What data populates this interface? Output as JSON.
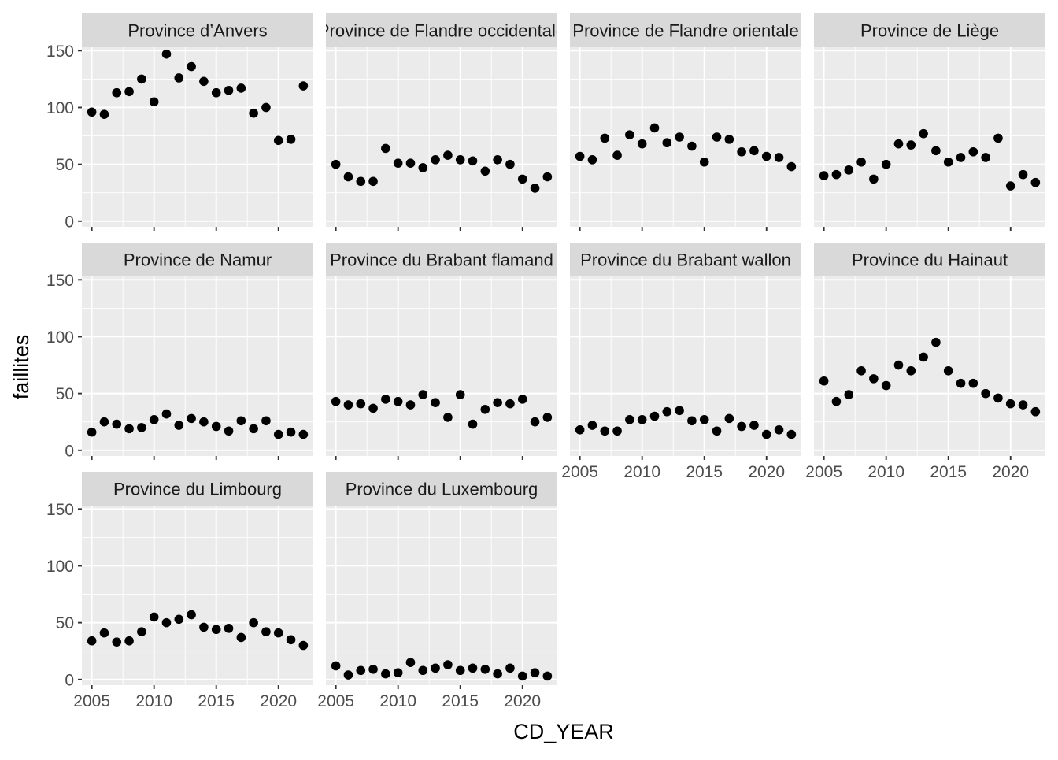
{
  "chart_data": {
    "type": "scatter",
    "xlabel": "CD_YEAR",
    "ylabel": "faillites",
    "xlim": [
      2004.2,
      2022.8
    ],
    "ylim": [
      -5,
      153
    ],
    "x_ticks": [
      "2005",
      "2010",
      "2015",
      "2020"
    ],
    "y_ticks": [
      "0",
      "50",
      "100",
      "150"
    ],
    "x": [
      2005,
      2006,
      2007,
      2008,
      2009,
      2010,
      2011,
      2012,
      2013,
      2014,
      2015,
      2016,
      2017,
      2018,
      2019,
      2020,
      2021,
      2022
    ],
    "grid": true,
    "point_color": "#000000",
    "panel_background": "#EBEBEB",
    "strip_background": "#D9D9D9",
    "facets": [
      {
        "name": "Province d’Anvers",
        "values": [
          96,
          94,
          113,
          114,
          125,
          105,
          147,
          126,
          136,
          123,
          113,
          115,
          117,
          95,
          100,
          71,
          72,
          119
        ]
      },
      {
        "name": "Province de Flandre occidentale",
        "values": [
          50,
          39,
          35,
          35,
          64,
          51,
          51,
          47,
          54,
          58,
          54,
          53,
          44,
          54,
          50,
          37,
          29,
          39
        ]
      },
      {
        "name": "Province de Flandre orientale",
        "values": [
          57,
          54,
          73,
          58,
          76,
          68,
          82,
          69,
          74,
          66,
          52,
          74,
          72,
          61,
          62,
          57,
          56,
          48
        ]
      },
      {
        "name": "Province de Liège",
        "values": [
          40,
          41,
          45,
          52,
          37,
          50,
          68,
          67,
          77,
          62,
          52,
          56,
          61,
          56,
          73,
          31,
          41,
          34
        ]
      },
      {
        "name": "Province de Namur",
        "values": [
          16,
          25,
          23,
          19,
          20,
          27,
          32,
          22,
          28,
          25,
          21,
          17,
          26,
          19,
          26,
          14,
          16,
          14
        ]
      },
      {
        "name": "Province du Brabant flamand",
        "values": [
          43,
          40,
          41,
          37,
          45,
          43,
          40,
          49,
          42,
          29,
          49,
          23,
          36,
          42,
          41,
          45,
          25,
          29
        ]
      },
      {
        "name": "Province du Brabant wallon",
        "values": [
          18,
          22,
          17,
          17,
          27,
          27,
          30,
          34,
          35,
          26,
          27,
          17,
          28,
          21,
          22,
          14,
          18,
          14
        ]
      },
      {
        "name": "Province du Hainaut",
        "values": [
          61,
          43,
          49,
          70,
          63,
          57,
          75,
          70,
          82,
          95,
          70,
          59,
          59,
          50,
          46,
          41,
          40,
          34
        ]
      },
      {
        "name": "Province du Limbourg",
        "values": [
          34,
          41,
          33,
          34,
          42,
          55,
          50,
          53,
          57,
          46,
          44,
          45,
          37,
          50,
          42,
          41,
          35,
          30
        ]
      },
      {
        "name": "Province du Luxembourg",
        "values": [
          12,
          4,
          8,
          9,
          5,
          6,
          15,
          8,
          10,
          13,
          8,
          10,
          9,
          5,
          10,
          3,
          6,
          3
        ]
      }
    ]
  }
}
